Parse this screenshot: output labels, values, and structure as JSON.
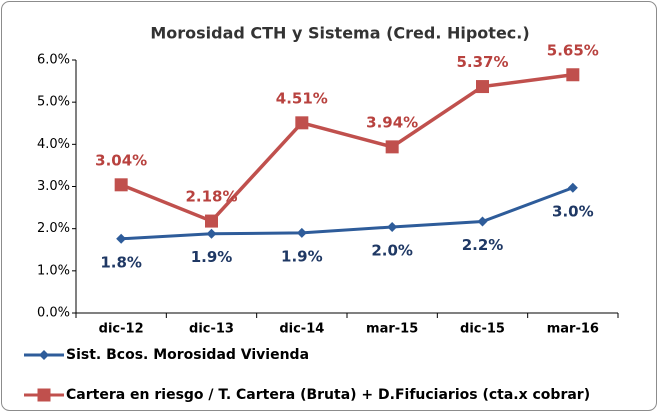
{
  "chart_data": {
    "type": "line",
    "title": "Morosidad CTH y Sistema (Cred. Hipotec.)",
    "categories": [
      "dic-12",
      "dic-13",
      "dic-14",
      "mar-15",
      "dic-15",
      "mar-16"
    ],
    "series": [
      {
        "name": "Sist. Bcos. Morosidad Vivienda",
        "color": "#2e5c9a",
        "label_color": "#1f3864",
        "marker": "diamond",
        "values": [
          1.76,
          1.88,
          1.9,
          2.04,
          2.17,
          2.97
        ],
        "value_labels": [
          "1.8%",
          "1.9%",
          "1.9%",
          "2.0%",
          "2.2%",
          "3.0%"
        ]
      },
      {
        "name": "Cartera en riesgo / T. Cartera (Bruta) + D.Fifuciarios (cta.x cobrar)",
        "color": "#c0504d",
        "label_color": "#b8423f",
        "marker": "square",
        "values": [
          3.04,
          2.18,
          4.51,
          3.94,
          5.37,
          5.65
        ],
        "value_labels": [
          "3.04%",
          "2.18%",
          "4.51%",
          "3.94%",
          "5.37%",
          "5.65%"
        ]
      }
    ],
    "ylim": [
      0,
      6
    ],
    "yticks": [
      {
        "value": 0,
        "label": "0.0%"
      },
      {
        "value": 1,
        "label": "1.0%"
      },
      {
        "value": 2,
        "label": "2.0%"
      },
      {
        "value": 3,
        "label": "3.0%"
      },
      {
        "value": 4,
        "label": "4.0%"
      },
      {
        "value": 5,
        "label": "5.0%"
      },
      {
        "value": 6,
        "label": "6.0%"
      }
    ],
    "grid": false,
    "legend": "bottom"
  }
}
